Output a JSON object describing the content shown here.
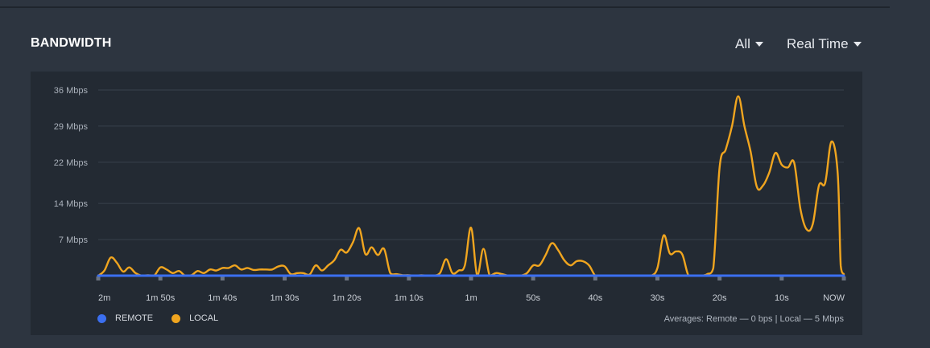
{
  "header": {
    "title": "BANDWIDTH",
    "filter_label": "All",
    "range_label": "Real Time"
  },
  "legend": {
    "remote_label": "REMOTE",
    "local_label": "LOCAL"
  },
  "averages_text": "Averages: Remote — 0 bps | Local — 5 Mbps",
  "colors": {
    "remote": "#3b6ff0",
    "local": "#f0a51f",
    "grid": "#39414c",
    "background": "#2d3540",
    "panel": "#232a33"
  },
  "chart_data": {
    "type": "line",
    "ylim": [
      0,
      36
    ],
    "xlim": [
      120,
      0
    ],
    "y_ticks": [
      {
        "value": 7,
        "label": "7 Mbps"
      },
      {
        "value": 14,
        "label": "14 Mbps"
      },
      {
        "value": 22,
        "label": "22 Mbps"
      },
      {
        "value": 29,
        "label": "29 Mbps"
      },
      {
        "value": 36,
        "label": "36 Mbps"
      }
    ],
    "x_ticks": [
      {
        "value": 120,
        "label": "2m"
      },
      {
        "value": 110,
        "label": "1m 50s"
      },
      {
        "value": 100,
        "label": "1m 40s"
      },
      {
        "value": 90,
        "label": "1m 30s"
      },
      {
        "value": 80,
        "label": "1m 20s"
      },
      {
        "value": 70,
        "label": "1m 10s"
      },
      {
        "value": 60,
        "label": "1m"
      },
      {
        "value": 50,
        "label": "50s"
      },
      {
        "value": 40,
        "label": "40s"
      },
      {
        "value": 30,
        "label": "30s"
      },
      {
        "value": 20,
        "label": "20s"
      },
      {
        "value": 10,
        "label": "10s"
      },
      {
        "value": 0,
        "label": "NOW"
      }
    ],
    "series": [
      {
        "name": "LOCAL",
        "color": "#f0a51f",
        "points": [
          [
            120,
            0
          ],
          [
            119,
            1
          ],
          [
            118,
            3.5
          ],
          [
            117,
            2.5
          ],
          [
            116,
            0.8
          ],
          [
            115,
            1.6
          ],
          [
            114,
            0.5
          ],
          [
            113,
            0
          ],
          [
            112,
            0.1
          ],
          [
            111,
            0
          ],
          [
            110,
            1.6
          ],
          [
            109,
            1.2
          ],
          [
            108,
            0.5
          ],
          [
            107,
            0.9
          ],
          [
            106,
            0
          ],
          [
            105,
            0.1
          ],
          [
            104,
            0.9
          ],
          [
            103,
            0.5
          ],
          [
            102,
            1.2
          ],
          [
            101,
            1
          ],
          [
            100,
            1.5
          ],
          [
            99,
            1.5
          ],
          [
            98,
            2
          ],
          [
            97,
            1.2
          ],
          [
            96,
            1.5
          ],
          [
            95,
            1.1
          ],
          [
            94,
            1.2
          ],
          [
            93,
            1.2
          ],
          [
            92,
            1.2
          ],
          [
            91,
            1.8
          ],
          [
            90,
            1.8
          ],
          [
            89,
            0.3
          ],
          [
            88,
            0.5
          ],
          [
            87,
            0.5
          ],
          [
            86,
            0.2
          ],
          [
            85,
            2
          ],
          [
            84,
            1
          ],
          [
            83,
            2
          ],
          [
            82,
            3
          ],
          [
            81,
            5
          ],
          [
            80,
            4.5
          ],
          [
            79,
            6.5
          ],
          [
            78,
            9.2
          ],
          [
            77,
            4.2
          ],
          [
            76,
            5.5
          ],
          [
            75,
            4
          ],
          [
            74,
            5.2
          ],
          [
            73,
            0.5
          ],
          [
            72,
            0.3
          ],
          [
            71,
            0.1
          ],
          [
            70,
            0.1
          ],
          [
            69,
            0
          ],
          [
            68,
            0.1
          ],
          [
            67,
            0
          ],
          [
            66,
            0
          ],
          [
            65,
            0.5
          ],
          [
            64,
            3.2
          ],
          [
            63,
            0.5
          ],
          [
            62,
            1
          ],
          [
            61,
            2
          ],
          [
            60,
            9.3
          ],
          [
            59,
            0
          ],
          [
            58,
            5.2
          ],
          [
            57,
            0
          ],
          [
            56,
            0.5
          ],
          [
            55,
            0.3
          ],
          [
            54,
            0
          ],
          [
            53,
            0
          ],
          [
            52,
            0
          ],
          [
            51,
            0.5
          ],
          [
            50,
            2
          ],
          [
            49,
            2
          ],
          [
            48,
            4
          ],
          [
            47,
            6.3
          ],
          [
            46,
            5
          ],
          [
            45,
            3
          ],
          [
            44,
            2
          ],
          [
            43,
            2.8
          ],
          [
            42,
            2.8
          ],
          [
            41,
            2
          ],
          [
            40,
            0
          ],
          [
            39,
            0
          ],
          [
            38,
            0
          ],
          [
            37,
            0
          ],
          [
            36,
            0
          ],
          [
            35,
            0
          ],
          [
            34,
            0
          ],
          [
            33,
            0
          ],
          [
            32,
            0
          ],
          [
            31,
            0
          ],
          [
            30,
            1.5
          ],
          [
            29,
            7.8
          ],
          [
            28,
            4.3
          ],
          [
            27,
            4.7
          ],
          [
            26,
            4.1
          ],
          [
            25,
            0
          ],
          [
            24,
            0
          ],
          [
            23,
            0
          ],
          [
            22,
            0.3
          ],
          [
            21,
            1.5
          ],
          [
            20,
            21
          ],
          [
            19,
            24.5
          ],
          [
            18,
            29
          ],
          [
            17,
            34.8
          ],
          [
            16,
            29
          ],
          [
            15,
            24
          ],
          [
            14,
            17.2
          ],
          [
            13,
            17.5
          ],
          [
            12,
            20
          ],
          [
            11,
            23.8
          ],
          [
            10,
            21.5
          ],
          [
            9,
            21
          ],
          [
            8,
            21.9
          ],
          [
            7,
            13
          ],
          [
            6,
            9
          ],
          [
            5,
            10
          ],
          [
            4,
            17.5
          ],
          [
            3,
            18
          ],
          [
            2,
            26
          ],
          [
            1,
            20
          ],
          [
            0.5,
            2
          ],
          [
            0,
            0.3
          ]
        ]
      },
      {
        "name": "REMOTE",
        "color": "#3b6ff0",
        "points": [
          [
            120,
            0
          ],
          [
            0,
            0
          ]
        ]
      }
    ]
  }
}
